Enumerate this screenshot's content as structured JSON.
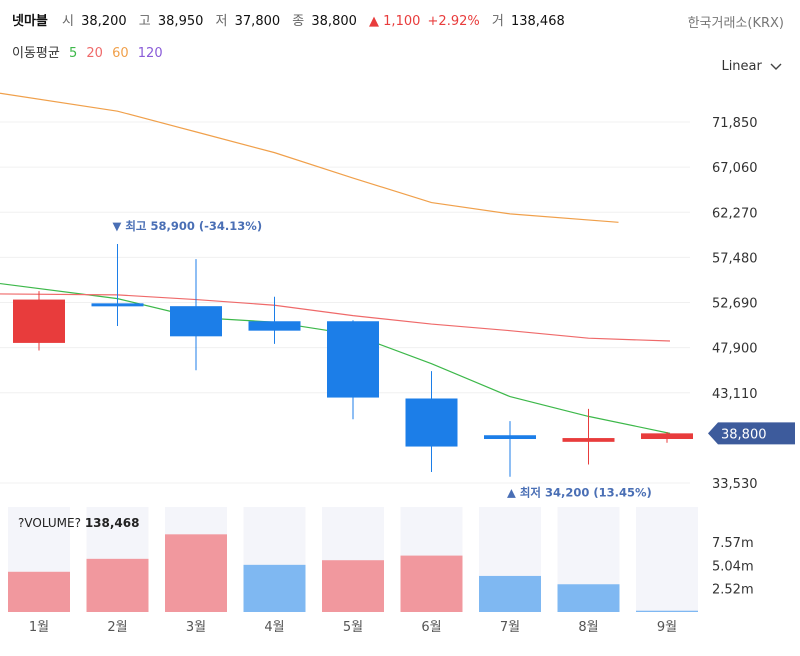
{
  "header": {
    "name": "넷마블",
    "open_label": "시",
    "open": "38,200",
    "high_label": "고",
    "high": "38,950",
    "low_label": "저",
    "low": "37,800",
    "close_label": "종",
    "close": "38,800",
    "change": "▲ 1,100",
    "change_pct": "+2.92%",
    "volume_label": "거",
    "volume": "138,468",
    "up_color": "#e83c3c",
    "down_color": "#1c7ee8"
  },
  "exchange": "한국거래소(KRX)",
  "ma_legend": {
    "label": "이동평균",
    "items": [
      {
        "text": "5",
        "color": "#3db84a"
      },
      {
        "text": "20",
        "color": "#ef6a6a"
      },
      {
        "text": "60",
        "color": "#f0a04b"
      },
      {
        "text": "120",
        "color": "#8a5cd8"
      }
    ]
  },
  "scale_button": {
    "label": "Linear",
    "icon": "chevron-down-icon"
  },
  "chart_data": {
    "type": "candlestick",
    "categories": [
      "1월",
      "2월",
      "3월",
      "4월",
      "5월",
      "6월",
      "7월",
      "8월",
      "9월"
    ],
    "ohlc": [
      {
        "open": 48400,
        "high": 53900,
        "low": 47600,
        "close": 53000
      },
      {
        "open": 52600,
        "high": 58900,
        "low": 50200,
        "close": 52400
      },
      {
        "open": 52300,
        "high": 57300,
        "low": 45500,
        "close": 49100
      },
      {
        "open": 50700,
        "high": 53300,
        "low": 48300,
        "close": 49700
      },
      {
        "open": 50700,
        "high": 50800,
        "low": 40300,
        "close": 42600
      },
      {
        "open": 42500,
        "high": 45400,
        "low": 34700,
        "close": 37400
      },
      {
        "open": 38600,
        "high": 40100,
        "low": 34200,
        "close": 38200
      },
      {
        "open": 37900,
        "high": 41400,
        "low": 35500,
        "close": 38300
      },
      {
        "open": 38200,
        "high": 38950,
        "low": 37800,
        "close": 38800
      }
    ],
    "moving_averages": [
      {
        "period": "5",
        "color": "#3db84a",
        "values": [
          54700,
          53100,
          51100,
          50600,
          49300,
          46200,
          42700,
          40600,
          38800
        ]
      },
      {
        "period": "20",
        "color": "#ef6a6a",
        "values": [
          53600,
          53500,
          53000,
          52400,
          51300,
          50400,
          49700,
          48900,
          48600
        ]
      },
      {
        "period": "60",
        "color": "#f0a04b",
        "values": [
          74900,
          73000,
          70800,
          68600,
          65900,
          63300,
          62100,
          61200
        ]
      }
    ],
    "y_ticks": [
      "71,850",
      "67,060",
      "62,270",
      "57,480",
      "52,690",
      "47,900",
      "43,110",
      "38,800",
      "33,530"
    ],
    "ylim": [
      31000,
      77000
    ],
    "annotations": {
      "high": {
        "text": "▼ 최고 58,900 (-34.13%)",
        "value": 58900,
        "index": 1
      },
      "low": {
        "text": "▲ 최저 34,200 (13.45%)",
        "value": 34200,
        "index": 6
      }
    },
    "current_price": {
      "text": "38,800",
      "value": 38800,
      "color": "#3d5b9c"
    },
    "volume": {
      "title": "?VOLUME?",
      "title_value": "138,468",
      "values": [
        4.35,
        5.75,
        8.4,
        5.1,
        5.6,
        6.1,
        3.9,
        3.0,
        0.14
      ],
      "directions": [
        "up",
        "up",
        "up",
        "down",
        "up",
        "up",
        "down",
        "down",
        "down"
      ],
      "unit": "m",
      "ylim": [
        0,
        12
      ],
      "ticks": [
        {
          "text": "7.57m",
          "value": 7.57
        },
        {
          "text": "5.04m",
          "value": 5.04
        },
        {
          "text": "2.52m",
          "value": 2.52
        }
      ],
      "up_color": "#f1989e",
      "down_color": "#7fb8f2",
      "bg_color": "#f4f5fa"
    }
  }
}
